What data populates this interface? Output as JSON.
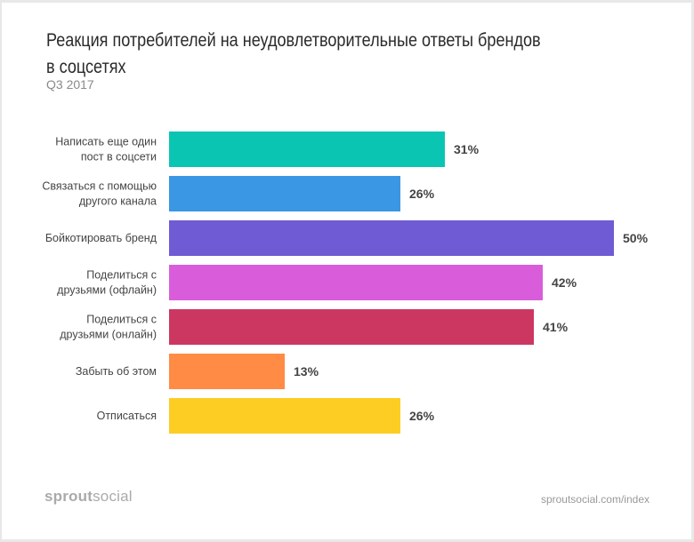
{
  "chart_data": {
    "type": "bar",
    "orientation": "horizontal",
    "title": "Реакция потребителей на неудовлетворительные ответы брендов в соцсетях",
    "subtitle": "Q3 2017",
    "categories": [
      [
        "Написать еще один",
        "пост в соцсети"
      ],
      [
        "Связаться с помощью",
        "другого канала"
      ],
      [
        "Бойкотировать бренд"
      ],
      [
        "Поделиться с",
        "друзьями (офлайн)"
      ],
      [
        "Поделиться с",
        "друзьями (онлайн)"
      ],
      [
        "Забыть об этом"
      ],
      [
        "Отписаться"
      ]
    ],
    "values": [
      31,
      26,
      50,
      42,
      41,
      13,
      26
    ],
    "value_labels": [
      "31%",
      "26%",
      "50%",
      "42%",
      "41%",
      "13%",
      "26%"
    ],
    "colors": [
      "#0bc5b3",
      "#3a97e3",
      "#6f5bd4",
      "#d95ddb",
      "#cc3762",
      "#ff8b45",
      "#fdcd23"
    ],
    "xlim": [
      0,
      50
    ],
    "grid": false,
    "legend": "none"
  },
  "footer": {
    "logo_bold": "sprout",
    "logo_light": "social",
    "url": "sproutsocial.com/index"
  }
}
